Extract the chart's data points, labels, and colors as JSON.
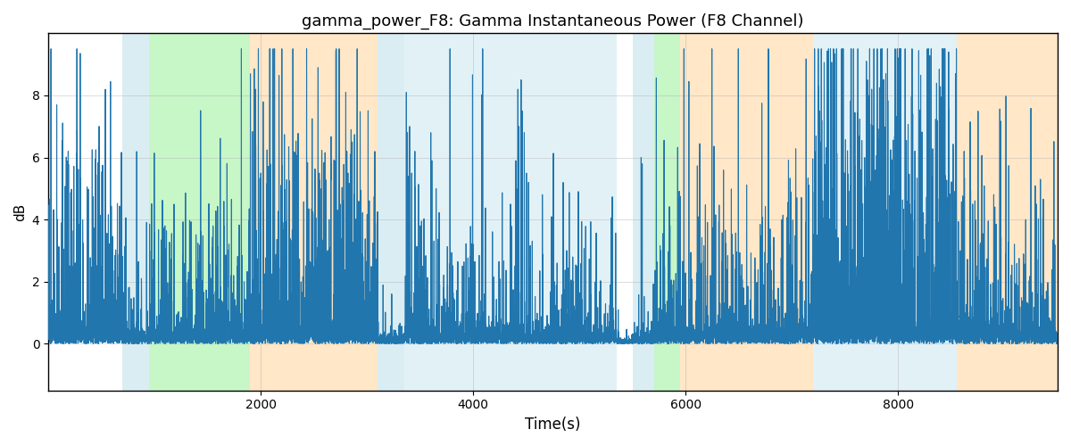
{
  "title": "gamma_power_F8: Gamma Instantaneous Power (F8 Channel)",
  "xlabel": "Time(s)",
  "ylabel": "dB",
  "xlim": [
    0,
    9500
  ],
  "ylim": [
    -1.5,
    10
  ],
  "yticks": [
    0,
    2,
    4,
    6,
    8
  ],
  "xticks": [
    2000,
    4000,
    6000,
    8000
  ],
  "line_color": "#2176ae",
  "line_width": 0.8,
  "bg_bands": [
    {
      "xmin": 700,
      "xmax": 950,
      "color": "#add8e6",
      "alpha": 0.45
    },
    {
      "xmin": 950,
      "xmax": 1900,
      "color": "#90ee90",
      "alpha": 0.5
    },
    {
      "xmin": 1900,
      "xmax": 3100,
      "color": "#ffd59a",
      "alpha": 0.55
    },
    {
      "xmin": 3100,
      "xmax": 3350,
      "color": "#add8e6",
      "alpha": 0.45
    },
    {
      "xmin": 3350,
      "xmax": 5350,
      "color": "#add8e6",
      "alpha": 0.35
    },
    {
      "xmin": 5350,
      "xmax": 5500,
      "color": "#ffffff",
      "alpha": 0.0
    },
    {
      "xmin": 5500,
      "xmax": 5700,
      "color": "#add8e6",
      "alpha": 0.45
    },
    {
      "xmin": 5700,
      "xmax": 5950,
      "color": "#90ee90",
      "alpha": 0.5
    },
    {
      "xmin": 5950,
      "xmax": 7200,
      "color": "#ffd59a",
      "alpha": 0.55
    },
    {
      "xmin": 7200,
      "xmax": 8550,
      "color": "#add8e6",
      "alpha": 0.35
    },
    {
      "xmin": 8550,
      "xmax": 9500,
      "color": "#ffd59a",
      "alpha": 0.55
    }
  ],
  "seed": 42,
  "n_points": 9500,
  "grid_color": "#b0b0b0",
  "grid_alpha": 0.6
}
